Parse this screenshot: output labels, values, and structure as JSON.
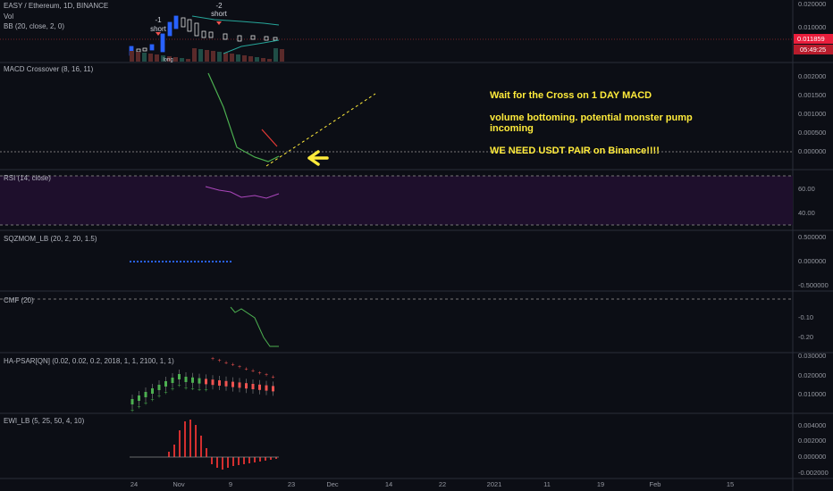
{
  "main": {
    "labels": [
      "EASY / Ethereum, 1D, BINANCE",
      "Vol",
      "BB (20, close, 2, 0)"
    ],
    "ticks": [
      "0.020000",
      "0.010000"
    ],
    "price_tag": "0.011859",
    "countdown": "05:49:25",
    "annotations": [
      "-1",
      "short",
      "-2",
      "short",
      "long"
    ]
  },
  "panes": [
    {
      "label": "MACD Crossover (8, 16, 11)",
      "ticks": [
        "0.002000",
        "0.001500",
        "0.001000",
        "0.000500",
        "0.000000"
      ]
    },
    {
      "label": "RSI (14, close)",
      "ticks": [
        "60.00",
        "40.00"
      ]
    },
    {
      "label": "SQZMOM_LB (20, 2, 20, 1.5)",
      "ticks": [
        "0.500000",
        "0.000000",
        "-0.500000"
      ]
    },
    {
      "label": "CMF (20)",
      "ticks": [
        "-0.10",
        "-0.20"
      ]
    },
    {
      "label": "HA-PSAR[QN] (0.02, 0.02, 0.2, 2018, 1, 1, 2100, 1, 1)",
      "ticks": [
        "0.030000",
        "0.020000",
        "0.010000"
      ]
    },
    {
      "label": "EWI_LB (5, 25, 50, 4, 10)",
      "ticks": [
        "0.004000",
        "0.002000",
        "0.000000",
        "-0.002000"
      ]
    }
  ],
  "notes": [
    "Wait for the Cross on 1 DAY MACD",
    "volume bottoming. potential monster pump",
    "incoming",
    "WE NEED USDT PAIR on Binance!!!!"
  ],
  "time_axis": [
    "24",
    "Nov",
    "9",
    "23",
    "Dec",
    "14",
    "22",
    "2021",
    "11",
    "19",
    "Feb",
    "15"
  ]
}
